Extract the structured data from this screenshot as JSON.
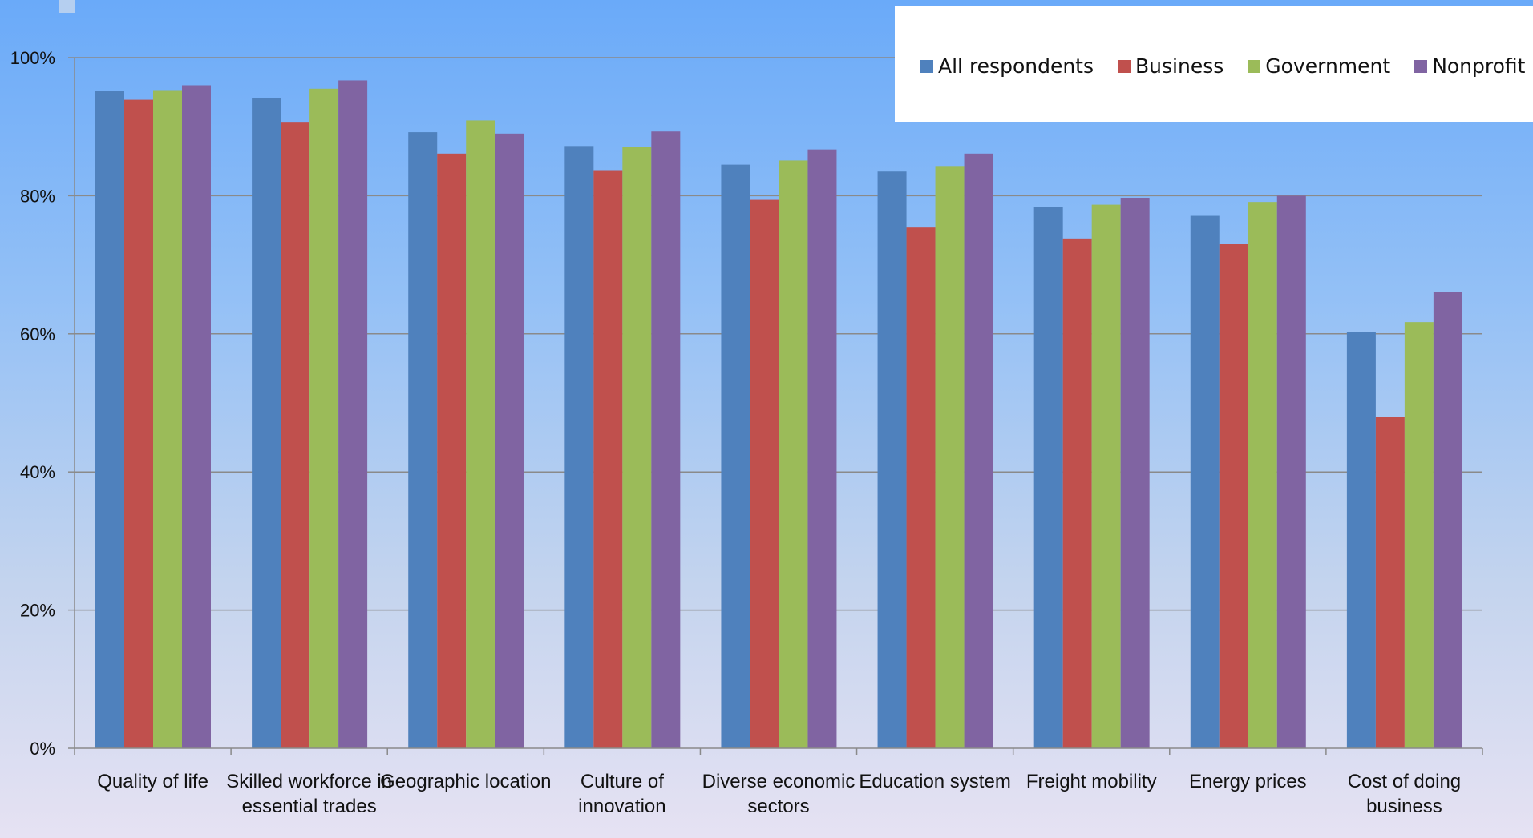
{
  "chart_data": {
    "type": "bar",
    "categories": [
      [
        "Quality of life"
      ],
      [
        "Skilled workforce in",
        "essential trades"
      ],
      [
        "Geographic location"
      ],
      [
        "Culture of",
        "innovation"
      ],
      [
        "Diverse economic",
        "sectors"
      ],
      [
        "Education system"
      ],
      [
        "Freight mobility"
      ],
      [
        "Energy prices"
      ],
      [
        "Cost of doing",
        "business"
      ]
    ],
    "series": [
      {
        "name": "All respondents",
        "color": "#4f81bd",
        "values": [
          95.2,
          94.2,
          89.2,
          87.2,
          84.5,
          83.5,
          78.4,
          77.2,
          60.3
        ]
      },
      {
        "name": "Business",
        "color": "#c0504d",
        "values": [
          93.9,
          90.7,
          86.1,
          83.7,
          79.4,
          75.5,
          73.8,
          73.0,
          48.0
        ]
      },
      {
        "name": "Government",
        "color": "#9bbb59",
        "values": [
          95.3,
          95.5,
          90.9,
          87.1,
          85.1,
          84.3,
          78.7,
          79.1,
          61.7
        ]
      },
      {
        "name": "Nonprofit",
        "color": "#8064a2",
        "values": [
          96.0,
          96.7,
          89.0,
          89.3,
          86.7,
          86.1,
          79.7,
          80.0,
          66.1
        ]
      }
    ],
    "ylim": [
      0,
      100
    ],
    "yticks": [
      "0%",
      "20%",
      "40%",
      "60%",
      "80%",
      "100%"
    ],
    "ytick_values": [
      0,
      20,
      40,
      60,
      80,
      100
    ],
    "grid": true,
    "legend_position": "top-right"
  }
}
